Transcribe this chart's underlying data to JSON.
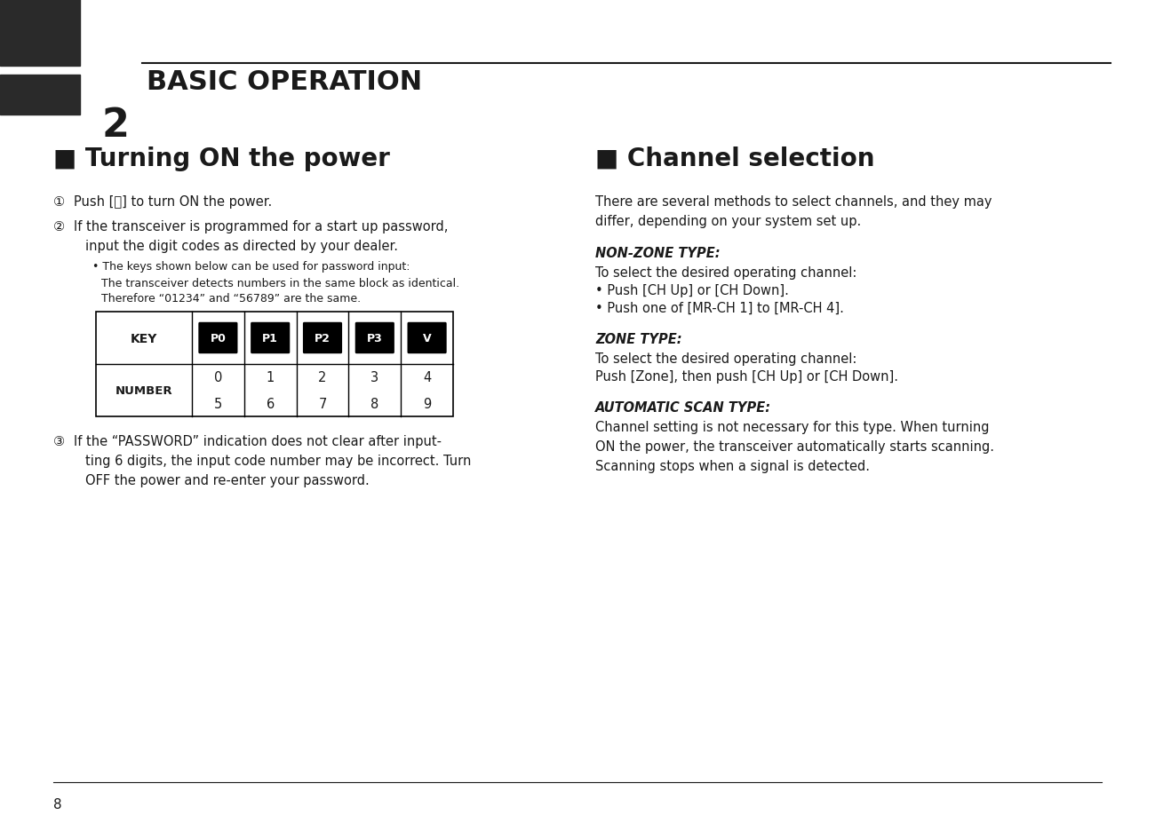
{
  "bg_color": "#ffffff",
  "text_color": "#1a1a1a",
  "header_bg": "#2a2a2a",
  "page_number": "8",
  "chapter_number": "2",
  "chapter_title": "BASIC OPERATION",
  "section1_title": "■ Turning ON the power",
  "section2_title": "■ Channel selection",
  "key_labels": [
    "P0",
    "P1",
    "P2",
    "P3",
    "V"
  ],
  "number_rows": [
    [
      "0",
      "1",
      "2",
      "3",
      "4"
    ],
    [
      "5",
      "6",
      "7",
      "8",
      "9"
    ]
  ],
  "fig_width": 13.0,
  "fig_height": 9.37,
  "dpi": 100
}
